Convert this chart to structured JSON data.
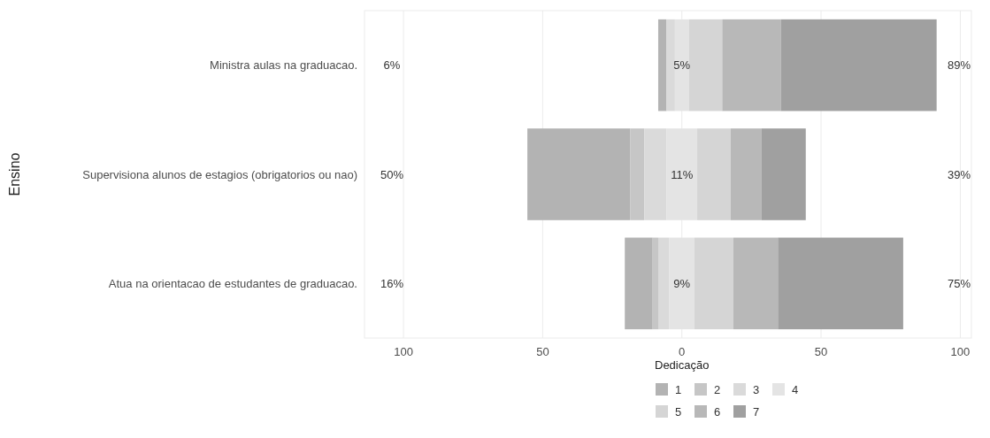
{
  "chart_data": {
    "type": "bar",
    "orientation": "horizontal",
    "categories": [
      "Ministra aulas na graduacao.",
      "Supervisiona alunos de estagios (obrigatorios ou nao)",
      "Atua na orientacao de estudantes de graduacao."
    ],
    "series": [
      {
        "name": "1",
        "color": "#b3b3b3",
        "values": [
          3,
          37,
          10
        ],
        "base": [
          -8.5,
          -55.5,
          -20.5
        ]
      },
      {
        "name": "2",
        "color": "#c6c6c6",
        "values": [
          null,
          5,
          2
        ],
        "base": [
          null,
          -18.5,
          -10.5
        ]
      },
      {
        "name": "3",
        "color": "#dadada",
        "values": [
          3,
          8,
          4
        ],
        "base": [
          -5.5,
          -13.5,
          -8.5
        ]
      },
      {
        "name": "4",
        "color": "#e4e4e4",
        "values": [
          5,
          11,
          9
        ],
        "base": [
          -2.5,
          -5.5,
          -4.5
        ]
      },
      {
        "name": "5",
        "color": "#d5d5d5",
        "values": [
          12,
          12,
          14
        ],
        "base": [
          2.5,
          5.5,
          4.5
        ]
      },
      {
        "name": "6",
        "color": "#b8b8b8",
        "values": [
          21,
          11,
          16
        ],
        "base": [
          14.5,
          17.5,
          18.5
        ]
      },
      {
        "name": "7",
        "color": "#a0a0a0",
        "values": [
          56,
          16,
          45
        ],
        "base": [
          35.5,
          28.5,
          34.5
        ]
      }
    ],
    "xlim": [
      -114,
      104
    ],
    "xticks": [
      {
        "value": -100,
        "label": "100"
      },
      {
        "value": -50,
        "label": "50"
      },
      0,
      50,
      100
    ],
    "xlabel": "Dedicação",
    "ylabel": "Ensino",
    "grid": "x",
    "legend": "bottom",
    "annotations": [
      "6%",
      "5%",
      "89%",
      "50%",
      "11%",
      "39%",
      "16%",
      "9%",
      "75%"
    ]
  }
}
